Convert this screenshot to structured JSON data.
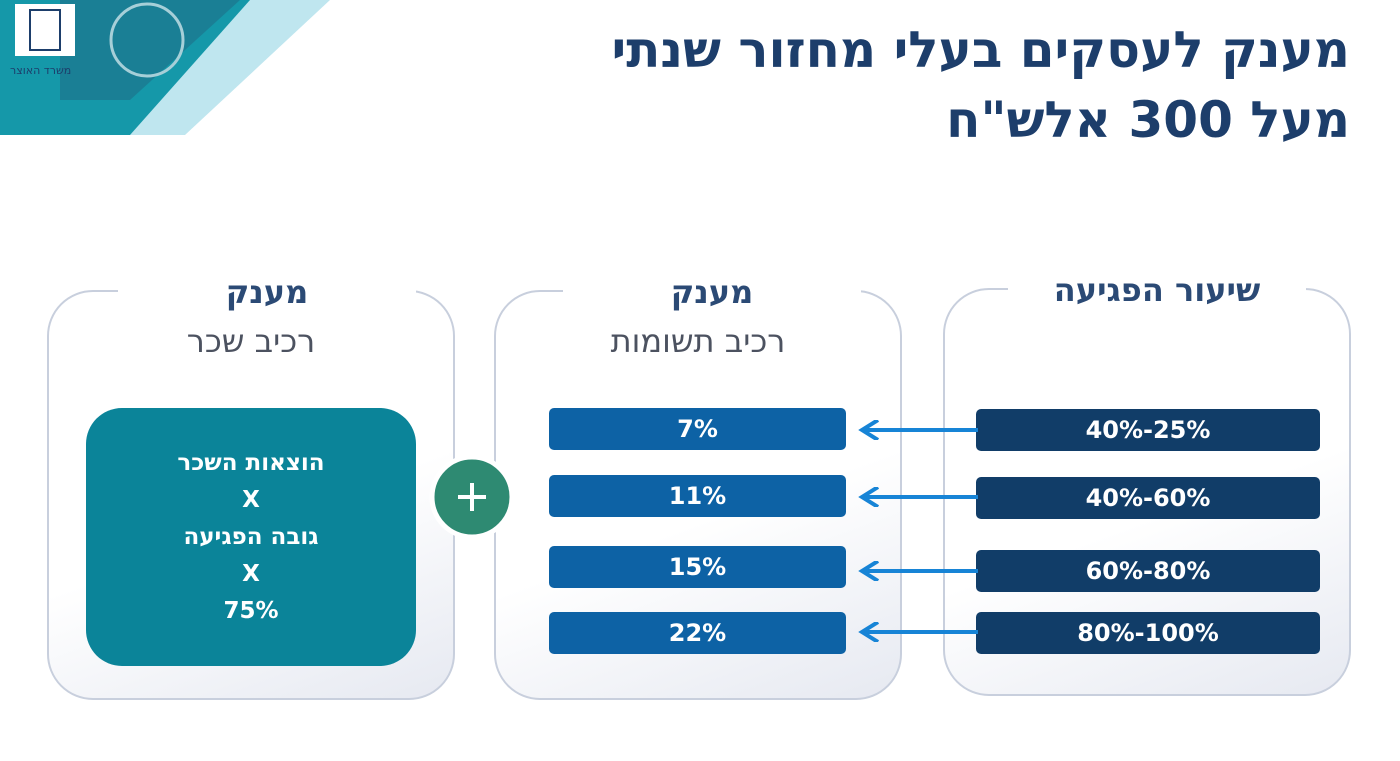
{
  "header": {
    "title_lines": [
      "מענק לעסקים בעלי מחזור שנתי",
      "מעל 300 אלש\"ח"
    ],
    "ministry": "משרד האוצר"
  },
  "panels": [
    {
      "title": "שיעור הפגיעה",
      "rows": [
        "40%-25%",
        "40%-60%",
        "60%-80%",
        "80%-100%"
      ]
    },
    {
      "title": "מענק",
      "subtitle": "רכיב תשומות",
      "rows": [
        "7%",
        "11%",
        "15%",
        "22%"
      ]
    },
    {
      "title": "מענק",
      "subtitle": "רכיב שכר",
      "formula": [
        "הוצאות השכר",
        "X",
        "גובה הפגיעה",
        "X",
        "75%"
      ]
    }
  ]
}
